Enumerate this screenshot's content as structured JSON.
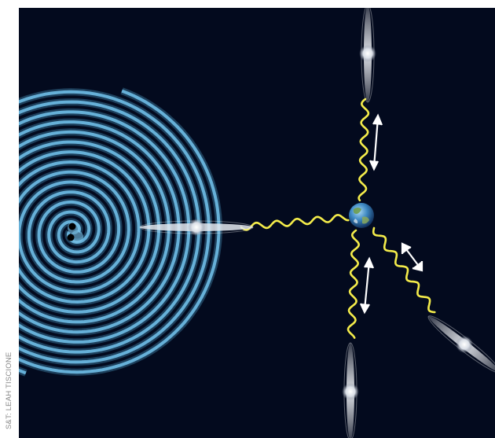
{
  "credit": "S&T: LEAH TISCIONE",
  "icons": {
    "binary": "black-hole-binary-icon",
    "earth": "earth-icon",
    "pulsar": "pulsar-icon",
    "arrow": "double-arrow-icon"
  },
  "colors": {
    "space": "#030a1e",
    "wave": "#4fa3cf",
    "signal": "#f4ec4a",
    "arrow": "#ffffff"
  }
}
